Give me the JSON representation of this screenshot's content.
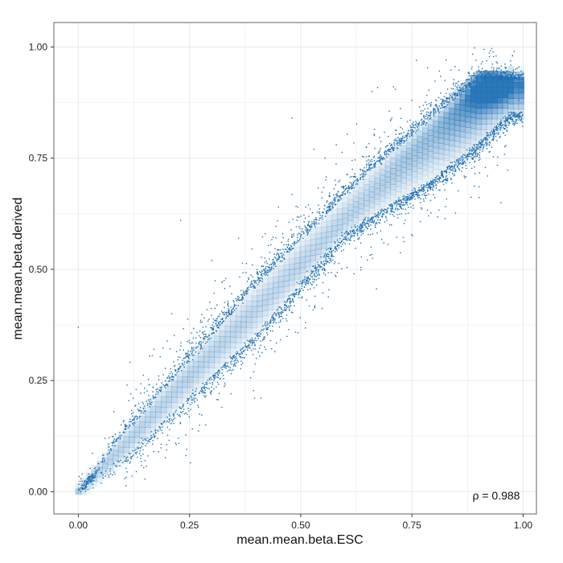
{
  "chart_data": {
    "type": "scatter",
    "title": "",
    "xlabel": "mean.mean.beta.ESC",
    "ylabel": "mean.mean.beta.derived",
    "xlim": [
      -0.055,
      1.03
    ],
    "ylim": [
      -0.05,
      1.055
    ],
    "x_ticks": [
      0.0,
      0.25,
      0.5,
      0.75,
      1.0
    ],
    "x_tick_labels": [
      "0.00",
      "0.25",
      "0.50",
      "0.75",
      "1.00"
    ],
    "y_ticks": [
      0.0,
      0.25,
      0.5,
      0.75,
      1.0
    ],
    "y_tick_labels": [
      "0.00",
      "0.25",
      "0.50",
      "0.75",
      "1.00"
    ],
    "grid": true,
    "legend": "none",
    "annotation": "ρ = 0.988",
    "colors": {
      "point": "#1f6fb2",
      "density": "#2171b5",
      "grid": "#ebebeb",
      "panel_border": "#7f7f7f"
    },
    "density_ridge": [
      {
        "x": 0.0,
        "y": 0.0,
        "intensity": 0.35
      },
      {
        "x": 0.1,
        "y": 0.1,
        "intensity": 0.3
      },
      {
        "x": 0.25,
        "y": 0.26,
        "intensity": 0.3
      },
      {
        "x": 0.4,
        "y": 0.41,
        "intensity": 0.28
      },
      {
        "x": 0.5,
        "y": 0.51,
        "intensity": 0.28
      },
      {
        "x": 0.65,
        "y": 0.66,
        "intensity": 0.3
      },
      {
        "x": 0.8,
        "y": 0.81,
        "intensity": 0.45
      },
      {
        "x": 0.92,
        "y": 0.92,
        "intensity": 0.9
      }
    ],
    "upper_edge": [
      {
        "x": 0.0,
        "y": 0.0
      },
      {
        "x": 0.1,
        "y": 0.13
      },
      {
        "x": 0.25,
        "y": 0.3
      },
      {
        "x": 0.4,
        "y": 0.47
      },
      {
        "x": 0.5,
        "y": 0.57
      },
      {
        "x": 0.65,
        "y": 0.72
      },
      {
        "x": 0.8,
        "y": 0.85
      },
      {
        "x": 0.9,
        "y": 0.93
      }
    ],
    "lower_edge": [
      {
        "x": 0.0,
        "y": 0.0
      },
      {
        "x": 0.1,
        "y": 0.07
      },
      {
        "x": 0.25,
        "y": 0.21
      },
      {
        "x": 0.4,
        "y": 0.35
      },
      {
        "x": 0.6,
        "y": 0.58
      },
      {
        "x": 0.8,
        "y": 0.7
      },
      {
        "x": 0.9,
        "y": 0.78
      },
      {
        "x": 0.97,
        "y": 0.85
      }
    ],
    "sample_points": [
      [
        0.0,
        0.37
      ],
      [
        0.23,
        0.61
      ],
      [
        0.48,
        0.84
      ],
      [
        0.66,
        0.9
      ],
      [
        0.98,
        0.99
      ],
      [
        0.45,
        0.64
      ],
      [
        0.36,
        0.57
      ],
      [
        0.3,
        0.52
      ],
      [
        0.88,
        0.74
      ],
      [
        0.92,
        0.71
      ],
      [
        0.55,
        0.47
      ],
      [
        0.7,
        0.6
      ],
      [
        0.17,
        0.32
      ],
      [
        0.13,
        0.23
      ],
      [
        0.21,
        0.4
      ],
      [
        0.4,
        0.3
      ],
      [
        0.62,
        0.49
      ],
      [
        0.98,
        0.92
      ],
      [
        1.0,
        0.94
      ],
      [
        0.99,
        0.88
      ],
      [
        0.95,
        0.65
      ],
      [
        0.58,
        0.78
      ],
      [
        0.53,
        0.77
      ],
      [
        0.42,
        0.58
      ],
      [
        0.33,
        0.24
      ],
      [
        0.27,
        0.19
      ],
      [
        0.15,
        0.07
      ],
      [
        0.06,
        0.12
      ],
      [
        0.08,
        0.18
      ],
      [
        0.76,
        0.97
      ]
    ]
  }
}
